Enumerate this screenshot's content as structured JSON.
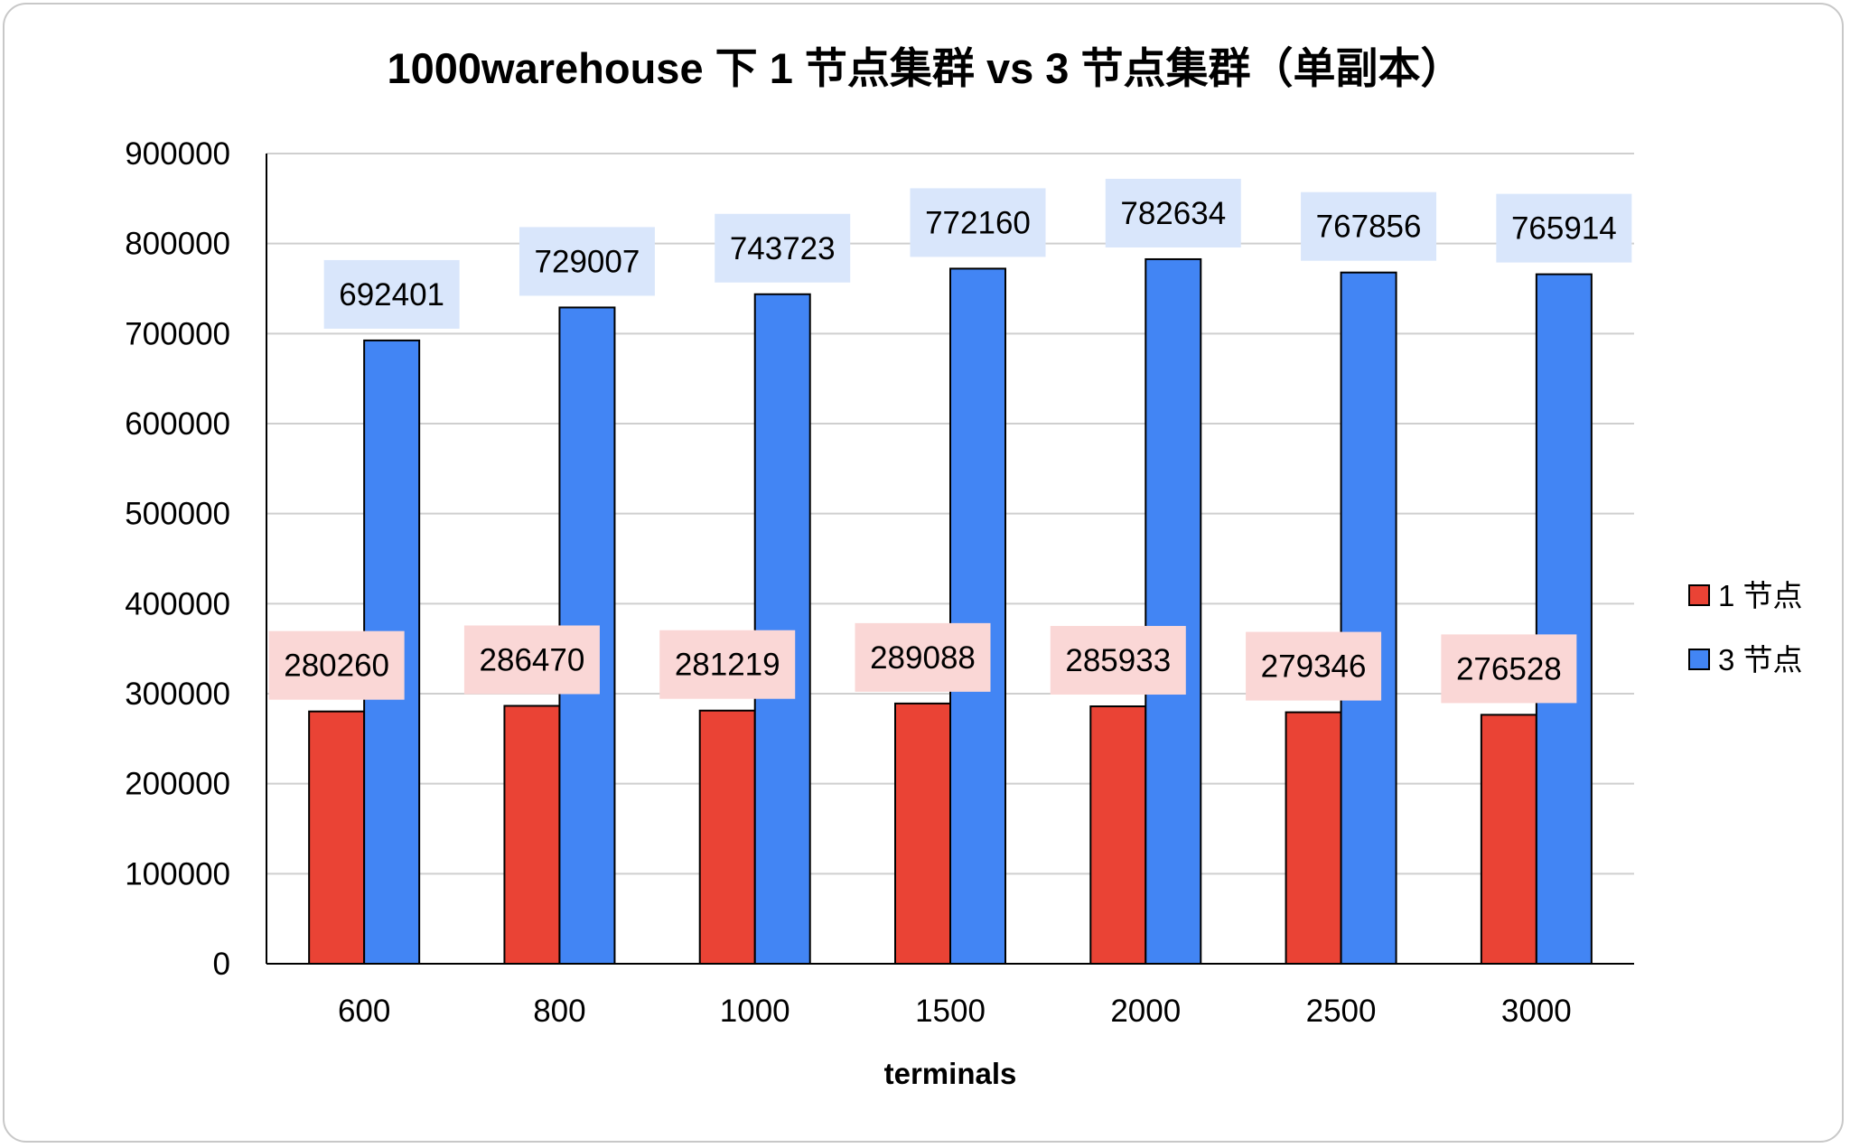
{
  "chart_data": {
    "type": "bar",
    "title": "1000warehouse 下 1 节点集群 vs 3 节点集群（单副本）",
    "xlabel": "terminals",
    "ylabel": "",
    "categories": [
      "600",
      "800",
      "1000",
      "1500",
      "2000",
      "2500",
      "3000"
    ],
    "series": [
      {
        "name": "1 节点",
        "color": "#ea4335",
        "label_bg": "#fad7d6",
        "values": [
          280260,
          286470,
          281219,
          289088,
          285933,
          279346,
          276528
        ]
      },
      {
        "name": "3 节点",
        "color": "#4285f4",
        "label_bg": "#d9e6fb",
        "values": [
          692401,
          729007,
          743723,
          772160,
          782634,
          767856,
          765914
        ]
      }
    ],
    "ylim": [
      0,
      900000
    ],
    "yticks": [
      "0",
      "100000",
      "200000",
      "300000",
      "400000",
      "500000",
      "600000",
      "700000",
      "800000",
      "900000"
    ],
    "grid": true,
    "data_labels": true,
    "legend": "right"
  }
}
